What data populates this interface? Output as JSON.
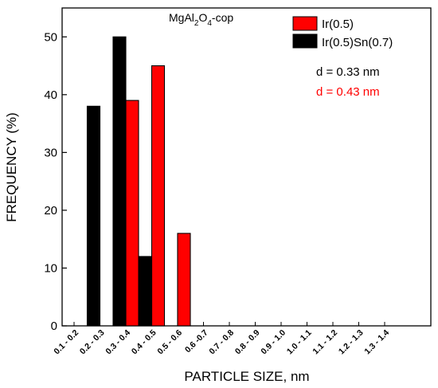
{
  "chart_data": {
    "type": "bar",
    "title_parts": {
      "a": "MgAl",
      "b": "2",
      "c": "O",
      "d": "4",
      "e": "-cop"
    },
    "xlabel": "PARTICLE SIZE, nm",
    "ylabel": "FREQUENCY (%)",
    "ylim": [
      0,
      55
    ],
    "yticks": [
      0,
      10,
      20,
      30,
      40,
      50
    ],
    "categories": [
      "0.1 - 0.2",
      "0.2 - 0.3",
      "0.3 - 0.4",
      "0.4 - 0.5",
      "0.5 - 0.6",
      "0.6 -0.7",
      "0.7 - 0.8",
      "0.8 - 0.9",
      "0.9 - 1.0",
      "1.0 - 1.1",
      "1.1 - 1.2",
      "1.2 - 1.3",
      "1.3 - 1.4"
    ],
    "series": [
      {
        "name": "Ir(0.5)",
        "color": "#ff0000",
        "values": [
          0,
          0,
          39,
          45,
          16,
          0,
          0,
          0,
          0,
          0,
          0,
          0,
          0
        ]
      },
      {
        "name": "Ir(0.5)Sn(0.7)",
        "color": "#000000",
        "values": [
          0,
          38,
          50,
          12,
          0,
          0,
          0,
          0,
          0,
          0,
          0,
          0,
          0
        ]
      }
    ],
    "legend_position": "top-right",
    "annotations": [
      {
        "text": "d = 0.33 nm",
        "color": "#000000"
      },
      {
        "text": "d = 0.43 nm",
        "color": "#ff0000"
      }
    ],
    "grid": false
  }
}
